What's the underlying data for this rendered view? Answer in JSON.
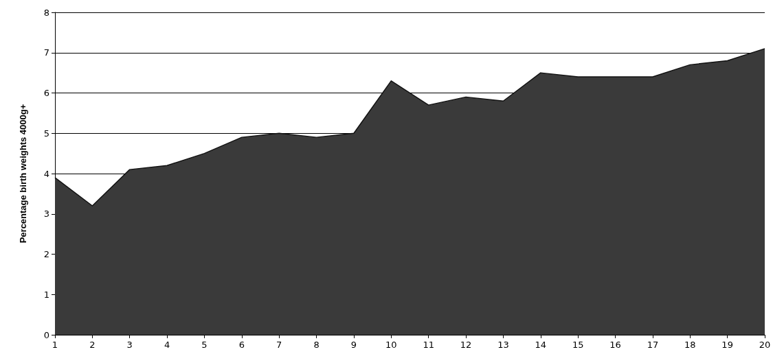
{
  "chart_data": {
    "type": "area",
    "ylabel": "Percentage birth weights 4000g+",
    "x": [
      1,
      2,
      3,
      4,
      5,
      6,
      7,
      8,
      9,
      10,
      11,
      12,
      13,
      14,
      15,
      16,
      17,
      18,
      19,
      20
    ],
    "series": [
      {
        "color": "#3a3a3a",
        "values": [
          3.9,
          3.2,
          4.1,
          4.2,
          4.5,
          4.9,
          5.0,
          4.9,
          5.0,
          6.3,
          5.7,
          5.9,
          5.8,
          6.5,
          6.4,
          6.4,
          6.4,
          6.7,
          6.8,
          7.1
        ]
      }
    ],
    "xlim": [
      1,
      20
    ],
    "xticks": [
      1,
      2,
      3,
      4,
      5,
      6,
      7,
      8,
      9,
      10,
      11,
      12,
      13,
      14,
      15,
      16,
      17,
      18,
      19,
      20
    ],
    "ylim": [
      0,
      8
    ],
    "yticks": [
      0,
      1,
      2,
      3,
      4,
      5,
      6,
      7,
      8
    ],
    "grid": "y",
    "marker": "none",
    "line_style": "solid"
  }
}
